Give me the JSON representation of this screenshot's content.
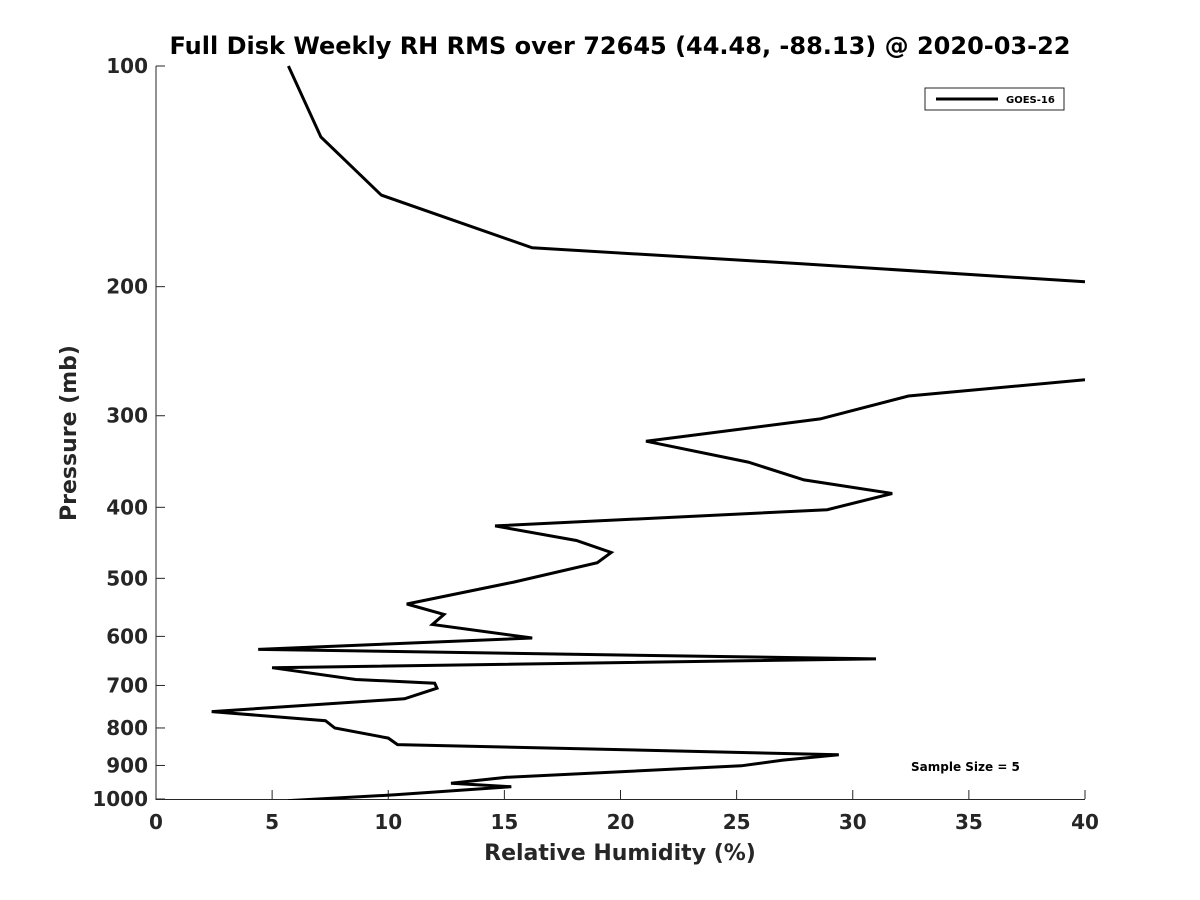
{
  "chart_data": {
    "type": "line",
    "title": "Full Disk Weekly RH RMS over 72645 (44.48, -88.13) @ 2020-03-22",
    "xlabel": "Relative Humidity (%)",
    "ylabel": "Pressure (mb)",
    "xlim": [
      0,
      40
    ],
    "ylim": [
      100,
      1000
    ],
    "yscale": "log",
    "y_reversed": true,
    "x_ticks": [
      0,
      5,
      10,
      15,
      20,
      25,
      30,
      35,
      40
    ],
    "y_ticks": [
      100,
      200,
      300,
      400,
      500,
      600,
      700,
      800,
      900,
      1000
    ],
    "grid": false,
    "legend_position": "top-right",
    "annotation": "Sample Size = 5",
    "series": [
      {
        "name": "GOES-16",
        "color": "#000000",
        "segments": [
          [
            [
              5.7,
              100
            ],
            [
              7.1,
              125
            ],
            [
              9.7,
              150
            ],
            [
              16.2,
              177
            ],
            [
              27.7,
              186
            ],
            [
              40.0,
              197
            ]
          ],
          [
            [
              40.0,
              268
            ],
            [
              32.4,
              282
            ],
            [
              28.6,
              303
            ],
            [
              21.1,
              325
            ],
            [
              25.5,
              347
            ],
            [
              27.9,
              367
            ],
            [
              31.7,
              383
            ],
            [
              28.9,
              403
            ],
            [
              14.6,
              424
            ],
            [
              18.1,
              444
            ],
            [
              19.6,
              461
            ],
            [
              19.0,
              476
            ],
            [
              15.4,
              506
            ],
            [
              10.8,
              542
            ],
            [
              12.4,
              560
            ],
            [
              11.9,
              578
            ],
            [
              16.2,
              603
            ],
            [
              4.4,
              625
            ],
            [
              31.0,
              644
            ],
            [
              5.0,
              662
            ],
            [
              8.6,
              687
            ],
            [
              12.0,
              695
            ],
            [
              12.1,
              706
            ],
            [
              10.7,
              730
            ],
            [
              2.4,
              760
            ],
            [
              7.3,
              782
            ],
            [
              7.7,
              800
            ],
            [
              10.0,
              826
            ],
            [
              10.4,
              843
            ],
            [
              29.4,
              870
            ],
            [
              27.0,
              885
            ],
            [
              25.2,
              901
            ],
            [
              15.1,
              934
            ],
            [
              12.7,
              952
            ],
            [
              15.3,
              962
            ],
            [
              10.3,
              987
            ],
            [
              5.7,
              1005
            ]
          ]
        ]
      }
    ]
  }
}
